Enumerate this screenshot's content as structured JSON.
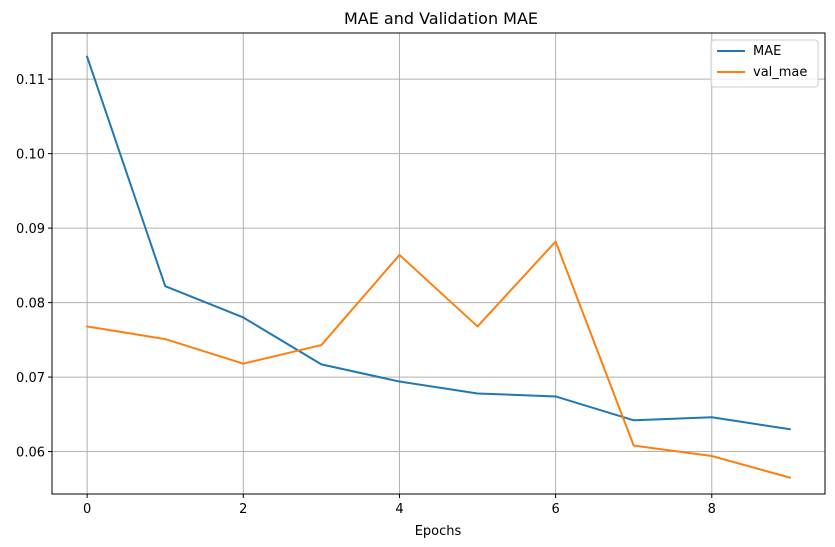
{
  "chart_data": {
    "type": "line",
    "title": "MAE and Validation MAE",
    "xlabel": "Epochs",
    "ylabel": "",
    "x": [
      0,
      1,
      2,
      3,
      4,
      5,
      6,
      7,
      8,
      9
    ],
    "xlim": [
      -0.45,
      9.45
    ],
    "ylim": [
      0.0543,
      0.1162
    ],
    "xticks": [
      0,
      2,
      4,
      6,
      8
    ],
    "xtick_labels": [
      "0",
      "2",
      "4",
      "6",
      "8"
    ],
    "yticks": [
      0.06,
      0.07,
      0.08,
      0.09,
      0.1,
      0.11
    ],
    "ytick_labels": [
      "0.06",
      "0.07",
      "0.08",
      "0.09",
      "0.10",
      "0.11"
    ],
    "grid": true,
    "legend_position": "top-right",
    "series": [
      {
        "name": "MAE",
        "color": "#1f77b4",
        "values": [
          0.113,
          0.0822,
          0.078,
          0.0717,
          0.0694,
          0.0678,
          0.0674,
          0.0642,
          0.0646,
          0.063
        ]
      },
      {
        "name": "val_mae",
        "color": "#ff7f0e",
        "values": [
          0.0768,
          0.0751,
          0.0718,
          0.0743,
          0.0864,
          0.0768,
          0.0882,
          0.0608,
          0.0594,
          0.0565
        ]
      }
    ]
  }
}
